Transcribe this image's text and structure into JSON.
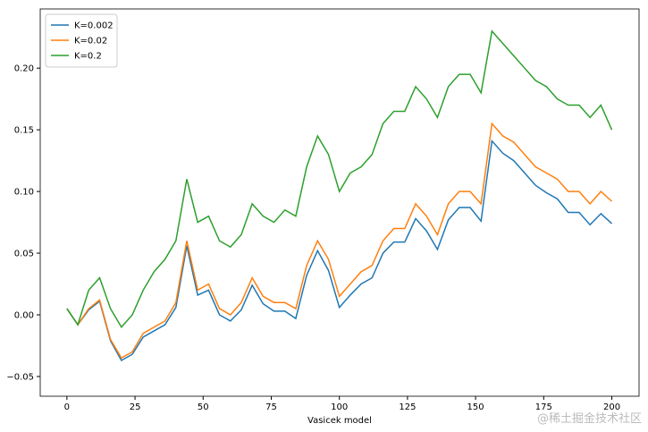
{
  "chart_data": {
    "type": "line",
    "xlabel": "Vasicek model",
    "x": [
      0,
      4,
      8,
      12,
      16,
      20,
      24,
      28,
      32,
      36,
      40,
      44,
      48,
      52,
      56,
      60,
      64,
      68,
      72,
      76,
      80,
      84,
      88,
      92,
      96,
      100,
      104,
      108,
      112,
      116,
      120,
      124,
      128,
      132,
      136,
      140,
      144,
      148,
      152,
      156,
      160,
      164,
      168,
      172,
      176,
      180,
      184,
      188,
      192,
      196,
      200
    ],
    "series": [
      {
        "name": "K=0.002",
        "color": "#1f77b4",
        "values": [
          0.005,
          -0.008,
          0.004,
          0.011,
          -0.021,
          -0.037,
          -0.032,
          -0.018,
          -0.013,
          -0.008,
          0.006,
          0.056,
          0.016,
          0.02,
          0.0,
          -0.005,
          0.004,
          0.024,
          0.009,
          0.003,
          0.003,
          -0.003,
          0.032,
          0.052,
          0.036,
          0.006,
          0.016,
          0.025,
          0.03,
          0.05,
          0.059,
          0.059,
          0.078,
          0.068,
          0.053,
          0.077,
          0.087,
          0.087,
          0.076,
          0.141,
          0.131,
          0.125,
          0.115,
          0.105,
          0.099,
          0.094,
          0.083,
          0.083,
          0.073,
          0.082,
          0.074
        ]
      },
      {
        "name": "K=0.02",
        "color": "#ff7f0e",
        "values": [
          0.005,
          -0.008,
          0.005,
          0.012,
          -0.02,
          -0.035,
          -0.03,
          -0.015,
          -0.01,
          -0.005,
          0.01,
          0.06,
          0.02,
          0.025,
          0.005,
          0.0,
          0.01,
          0.03,
          0.015,
          0.01,
          0.01,
          0.005,
          0.04,
          0.06,
          0.045,
          0.015,
          0.025,
          0.035,
          0.04,
          0.06,
          0.07,
          0.07,
          0.09,
          0.08,
          0.065,
          0.09,
          0.1,
          0.1,
          0.09,
          0.155,
          0.145,
          0.14,
          0.13,
          0.12,
          0.115,
          0.11,
          0.1,
          0.1,
          0.09,
          0.1,
          0.092
        ]
      },
      {
        "name": "K=0.2",
        "color": "#2ca02c",
        "values": [
          0.005,
          -0.008,
          0.02,
          0.03,
          0.005,
          -0.01,
          0.0,
          0.02,
          0.035,
          0.045,
          0.06,
          0.11,
          0.075,
          0.08,
          0.06,
          0.055,
          0.065,
          0.09,
          0.08,
          0.075,
          0.085,
          0.08,
          0.12,
          0.145,
          0.13,
          0.1,
          0.115,
          0.12,
          0.13,
          0.155,
          0.165,
          0.165,
          0.185,
          0.175,
          0.16,
          0.185,
          0.195,
          0.195,
          0.18,
          0.23,
          0.22,
          0.21,
          0.2,
          0.19,
          0.185,
          0.175,
          0.17,
          0.17,
          0.16,
          0.17,
          0.15
        ]
      }
    ],
    "xlim": [
      -9.8,
      210
    ],
    "ylim": [
      -0.066,
      0.248
    ],
    "xticks": [
      0,
      25,
      50,
      75,
      100,
      125,
      150,
      175,
      200
    ],
    "yticks": [
      {
        "value": -0.05,
        "label": "−0.05"
      },
      {
        "value": 0,
        "label": "0.00"
      },
      0.05,
      {
        "value": 0.1,
        "label": "0.10"
      },
      0.15,
      {
        "value": 0.2,
        "label": "0.20"
      }
    ],
    "legend": "upper left",
    "grid": false
  },
  "watermark": "@稀土掘金技术社区"
}
